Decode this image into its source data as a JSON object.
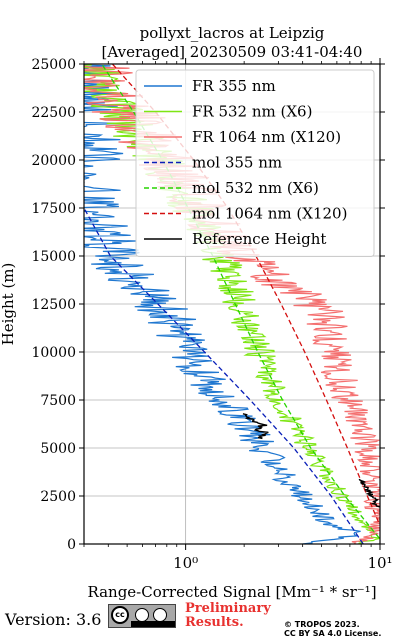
{
  "chart_data": {
    "type": "line",
    "title_line1": "pollyxt_lacros at Leipzig",
    "title_line2": "[Averaged] 20230509 03:41-04:40",
    "ylabel": "Height (m)",
    "xlabel": "Range-Corrected Signal [Mm⁻¹ * sr⁻¹]",
    "xscale": "log",
    "xlim": [
      0.3,
      10
    ],
    "ylim": [
      0,
      25000
    ],
    "x_tick_labels": [
      "10⁰",
      "10¹"
    ],
    "x_major_ticks": [
      1,
      10
    ],
    "y_ticks": [
      0,
      2500,
      5000,
      7500,
      10000,
      12500,
      15000,
      17500,
      20000,
      22500,
      25000
    ],
    "y_tick_labels": [
      "0",
      "2500",
      "5000",
      "7500",
      "10000",
      "12500",
      "15000",
      "17500",
      "20000",
      "22500",
      "25000"
    ],
    "grid": true,
    "legend_position": "upper-right",
    "series": [
      {
        "name": "FR 355 nm",
        "color": "#1f77d0",
        "style": "solid",
        "height": [
          0,
          300,
          600,
          1000,
          1500,
          2000,
          2500,
          3000,
          3500,
          4000,
          4500,
          5000,
          5500,
          6000,
          6500,
          7000,
          7500,
          8000,
          8500,
          9000,
          9500,
          10000,
          10500,
          11000,
          11500,
          12000,
          12500,
          13000,
          13500,
          14000,
          14500,
          15000,
          15500,
          16000,
          16500,
          17000,
          17500,
          18000,
          19000,
          20000,
          21000,
          22000,
          23000,
          24000,
          25000
        ],
        "signal": [
          4.0,
          6.5,
          7.8,
          5.6,
          4.9,
          4.4,
          4.0,
          3.6,
          3.2,
          2.9,
          2.7,
          2.5,
          2.3,
          2.1,
          1.95,
          1.8,
          1.6,
          1.45,
          1.3,
          1.2,
          1.1,
          1.0,
          0.95,
          0.9,
          0.85,
          0.8,
          0.72,
          0.65,
          0.6,
          0.52,
          0.47,
          0.42,
          0.4,
          0.38,
          0.35,
          0.33,
          0.32,
          0.31,
          0.3,
          0.3,
          0.3,
          0.3,
          0.3,
          0.3,
          0.3
        ]
      },
      {
        "name": "FR 532 nm (X6)",
        "color": "#7ee614",
        "style": "solid",
        "height": [
          0,
          300,
          600,
          1000,
          1500,
          2000,
          2500,
          3000,
          4000,
          5000,
          6000,
          7000,
          8000,
          9000,
          10000,
          11000,
          12000,
          13000,
          14000,
          15000,
          16000,
          17000,
          18000,
          19000,
          20000,
          21000,
          22000,
          23000,
          24000,
          25000
        ],
        "signal": [
          7.5,
          9.5,
          9.0,
          8.3,
          7.6,
          7.0,
          6.4,
          5.9,
          5.0,
          4.3,
          3.7,
          3.2,
          2.85,
          2.6,
          2.4,
          2.2,
          2.0,
          1.85,
          1.65,
          1.5,
          1.3,
          1.15,
          1.0,
          0.85,
          0.72,
          0.6,
          0.5,
          0.42,
          0.35,
          0.31
        ]
      },
      {
        "name": "FR 1064 nm (X120)",
        "color": "#f47070",
        "style": "solid",
        "height": [
          0,
          500,
          1000,
          1500,
          2000,
          2500,
          3000,
          3500,
          4000,
          5000,
          6000,
          7000,
          8000,
          9000,
          10000,
          11000,
          12000,
          13000,
          14000,
          15000,
          16000,
          17000,
          18000,
          19000,
          20000,
          21000,
          22000,
          23000,
          24000,
          25000
        ],
        "signal": [
          7.0,
          9.8,
          9.5,
          9.6,
          9.3,
          9.5,
          9.0,
          9.2,
          9.0,
          8.6,
          8.0,
          7.3,
          6.6,
          6.0,
          5.6,
          5.6,
          5.2,
          4.0,
          2.6,
          2.0,
          1.6,
          1.3,
          1.1,
          0.95,
          0.8,
          0.65,
          0.55,
          0.45,
          0.38,
          0.32
        ]
      },
      {
        "name": "mol 355 nm",
        "color": "#0a1fb8",
        "style": "dashed",
        "height": [
          0,
          2500,
          5000,
          7500,
          10000,
          12500,
          15000,
          17500
        ],
        "signal": [
          8.2,
          5.6,
          3.6,
          2.15,
          1.25,
          0.72,
          0.41,
          0.3
        ]
      },
      {
        "name": "mol 532 nm (X6)",
        "color": "#26d400",
        "style": "dashed",
        "height": [
          0,
          2500,
          5000,
          7500,
          10000,
          12500,
          15000,
          17500,
          20000,
          22500,
          25000
        ],
        "signal": [
          10.5,
          6.6,
          4.4,
          3.15,
          2.35,
          1.8,
          1.38,
          1.03,
          0.76,
          0.54,
          0.37
        ]
      },
      {
        "name": "mol 1064 nm (X120)",
        "color": "#d40f0f",
        "style": "dashed",
        "height": [
          0,
          2500,
          5000,
          7500,
          10000,
          12500,
          15000,
          17500,
          20000,
          22500,
          25000
        ],
        "signal": [
          11.0,
          8.6,
          6.8,
          5.3,
          4.1,
          3.1,
          2.3,
          1.65,
          1.1,
          0.7,
          0.42
        ]
      },
      {
        "name": "Reference Height",
        "color": "#000000",
        "style": "solid",
        "height": [
          5500,
          5800,
          6000,
          6200,
          6500,
          6800
        ],
        "signal": [
          2.45,
          2.6,
          2.3,
          2.5,
          2.2,
          2.0
        ],
        "height_2": [
          1900,
          2100,
          2300,
          2500,
          2800,
          3100,
          3400
        ],
        "signal_2": [
          9.8,
          9.3,
          9.7,
          9.1,
          8.6,
          8.3,
          8.0
        ]
      }
    ]
  },
  "footer": {
    "version": "Version: 3.6",
    "cc_text": "cc",
    "preliminary_line1": "Preliminary",
    "preliminary_line2": "Results.",
    "copyright_line1": "© TROPOS 2023.",
    "copyright_line2": "CC BY SA 4.0 License."
  }
}
